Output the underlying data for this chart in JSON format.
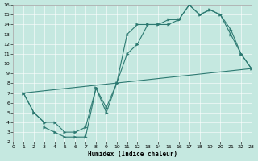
{
  "xlabel": "Humidex (Indice chaleur)",
  "xlim": [
    0,
    23
  ],
  "ylim": [
    2,
    16
  ],
  "xticks": [
    0,
    1,
    2,
    3,
    4,
    5,
    6,
    7,
    8,
    9,
    10,
    11,
    12,
    13,
    14,
    15,
    16,
    17,
    18,
    19,
    20,
    21,
    22,
    23
  ],
  "yticks": [
    2,
    3,
    4,
    5,
    6,
    7,
    8,
    9,
    10,
    11,
    12,
    13,
    14,
    15,
    16
  ],
  "line_color": "#2d7a72",
  "bg_color": "#c5e8e0",
  "lines": [
    {
      "x": [
        1,
        2,
        3,
        3,
        4,
        5,
        6,
        7,
        8,
        9,
        10,
        11,
        12,
        13,
        14,
        15,
        16,
        17,
        18,
        19,
        20,
        21,
        22,
        23
      ],
      "y": [
        7,
        5,
        4,
        3.5,
        3,
        2.5,
        2.5,
        2.5,
        7.5,
        5.5,
        8,
        11,
        12,
        14,
        14,
        14,
        14.5,
        16,
        15,
        15.5,
        15,
        13,
        11,
        9.5
      ]
    },
    {
      "x": [
        1,
        2,
        3,
        4,
        5,
        6,
        7,
        8,
        9,
        10,
        11,
        12,
        13,
        14,
        15,
        16,
        17,
        18,
        19,
        20,
        21,
        22,
        23
      ],
      "y": [
        7,
        5,
        4,
        4,
        3,
        3,
        3.5,
        7.5,
        5,
        8,
        13,
        14,
        14,
        14,
        14.5,
        14.5,
        16,
        15,
        15.5,
        15,
        13.5,
        11,
        9.5
      ]
    },
    {
      "x": [
        1,
        23
      ],
      "y": [
        7,
        9.5
      ]
    }
  ],
  "xlabel_fontsize": 5.5,
  "tick_fontsize": 4.5
}
